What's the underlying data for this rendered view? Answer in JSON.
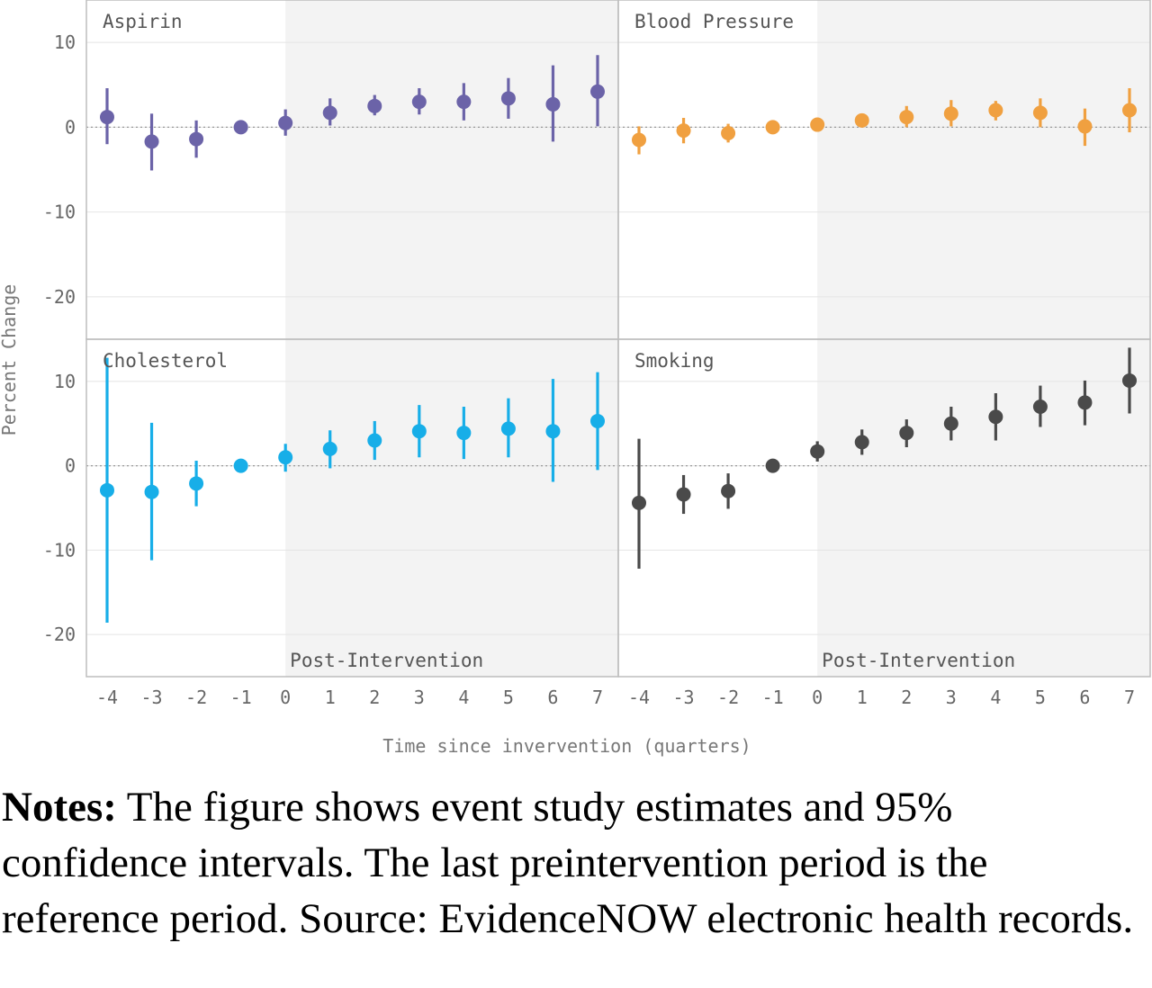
{
  "chart_data": {
    "type": "scatter",
    "subtype": "point-range (event study, faceted 2x2)",
    "xlabel": "Time since invervention (quarters)",
    "ylabel": "Percent Change",
    "x": [
      -4,
      -3,
      -2,
      -1,
      0,
      1,
      2,
      3,
      4,
      5,
      6,
      7
    ],
    "x_ticks": [
      "-4",
      "-3",
      "-2",
      "-1",
      "0",
      "1",
      "2",
      "3",
      "4",
      "5",
      "6",
      "7"
    ],
    "y_ticks": [
      "-20",
      "-10",
      "0",
      "10"
    ],
    "reference_line_y": 0,
    "shaded_region": {
      "x_from": 0,
      "label": "Post-Intervention"
    },
    "grid": true,
    "panels": [
      {
        "name": "Aspirin",
        "color": "#6b63a8",
        "ylim": [
          -25,
          15
        ],
        "estimate": [
          1.2,
          -1.7,
          -1.4,
          0,
          0.5,
          1.7,
          2.5,
          3.0,
          3.0,
          3.4,
          2.7,
          4.2
        ],
        "ci_low": [
          -2.0,
          -5.1,
          -3.6,
          0,
          -1.0,
          0.2,
          1.4,
          1.5,
          0.8,
          1.0,
          -1.7,
          0.1
        ],
        "ci_high": [
          4.6,
          1.6,
          0.8,
          0,
          2.1,
          3.4,
          3.8,
          4.6,
          5.2,
          5.8,
          7.3,
          8.5
        ]
      },
      {
        "name": "Blood Pressure",
        "color": "#f0a040",
        "ylim": [
          -25,
          15
        ],
        "estimate": [
          -1.5,
          -0.4,
          -0.7,
          0,
          0.3,
          0.8,
          1.2,
          1.6,
          2.0,
          1.7,
          0.1,
          2.0
        ],
        "ci_low": [
          -3.2,
          -1.9,
          -1.8,
          0,
          -0.4,
          0.0,
          0.0,
          0.1,
          0.8,
          0.0,
          -2.2,
          -0.6
        ],
        "ci_high": [
          0.1,
          1.1,
          0.4,
          0,
          1.0,
          1.6,
          2.5,
          3.2,
          3.1,
          3.4,
          2.2,
          4.6
        ]
      },
      {
        "name": "Cholesterol",
        "color": "#17aee8",
        "ylim": [
          -25,
          15
        ],
        "estimate": [
          -2.9,
          -3.1,
          -2.1,
          0,
          1.0,
          2.0,
          3.0,
          4.1,
          3.9,
          4.4,
          4.1,
          5.3
        ],
        "ci_low": [
          -18.6,
          -11.2,
          -4.8,
          0,
          -0.7,
          -0.3,
          0.7,
          1.0,
          0.8,
          1.0,
          -1.9,
          -0.5
        ],
        "ci_high": [
          12.8,
          5.1,
          0.6,
          0,
          2.6,
          4.2,
          5.3,
          7.2,
          7.0,
          8.0,
          10.3,
          11.1
        ]
      },
      {
        "name": "Smoking",
        "color": "#4a4a4a",
        "ylim": [
          -25,
          15
        ],
        "estimate": [
          -4.4,
          -3.4,
          -3.0,
          0,
          1.7,
          2.8,
          3.9,
          5.0,
          5.8,
          7.0,
          7.5,
          10.1
        ],
        "ci_low": [
          -12.2,
          -5.7,
          -5.1,
          0,
          0.5,
          1.3,
          2.2,
          3.0,
          3.0,
          4.6,
          4.8,
          6.2
        ],
        "ci_high": [
          3.2,
          -1.1,
          -0.9,
          0,
          2.9,
          4.3,
          5.5,
          7.0,
          8.6,
          9.5,
          10.1,
          14.0
        ]
      }
    ]
  },
  "notes": {
    "label": "Notes:",
    "text": " The figure shows event study estimates and 95% confidence intervals. The last preintervention period is the reference period. Source: EvidenceNOW electronic health records."
  }
}
